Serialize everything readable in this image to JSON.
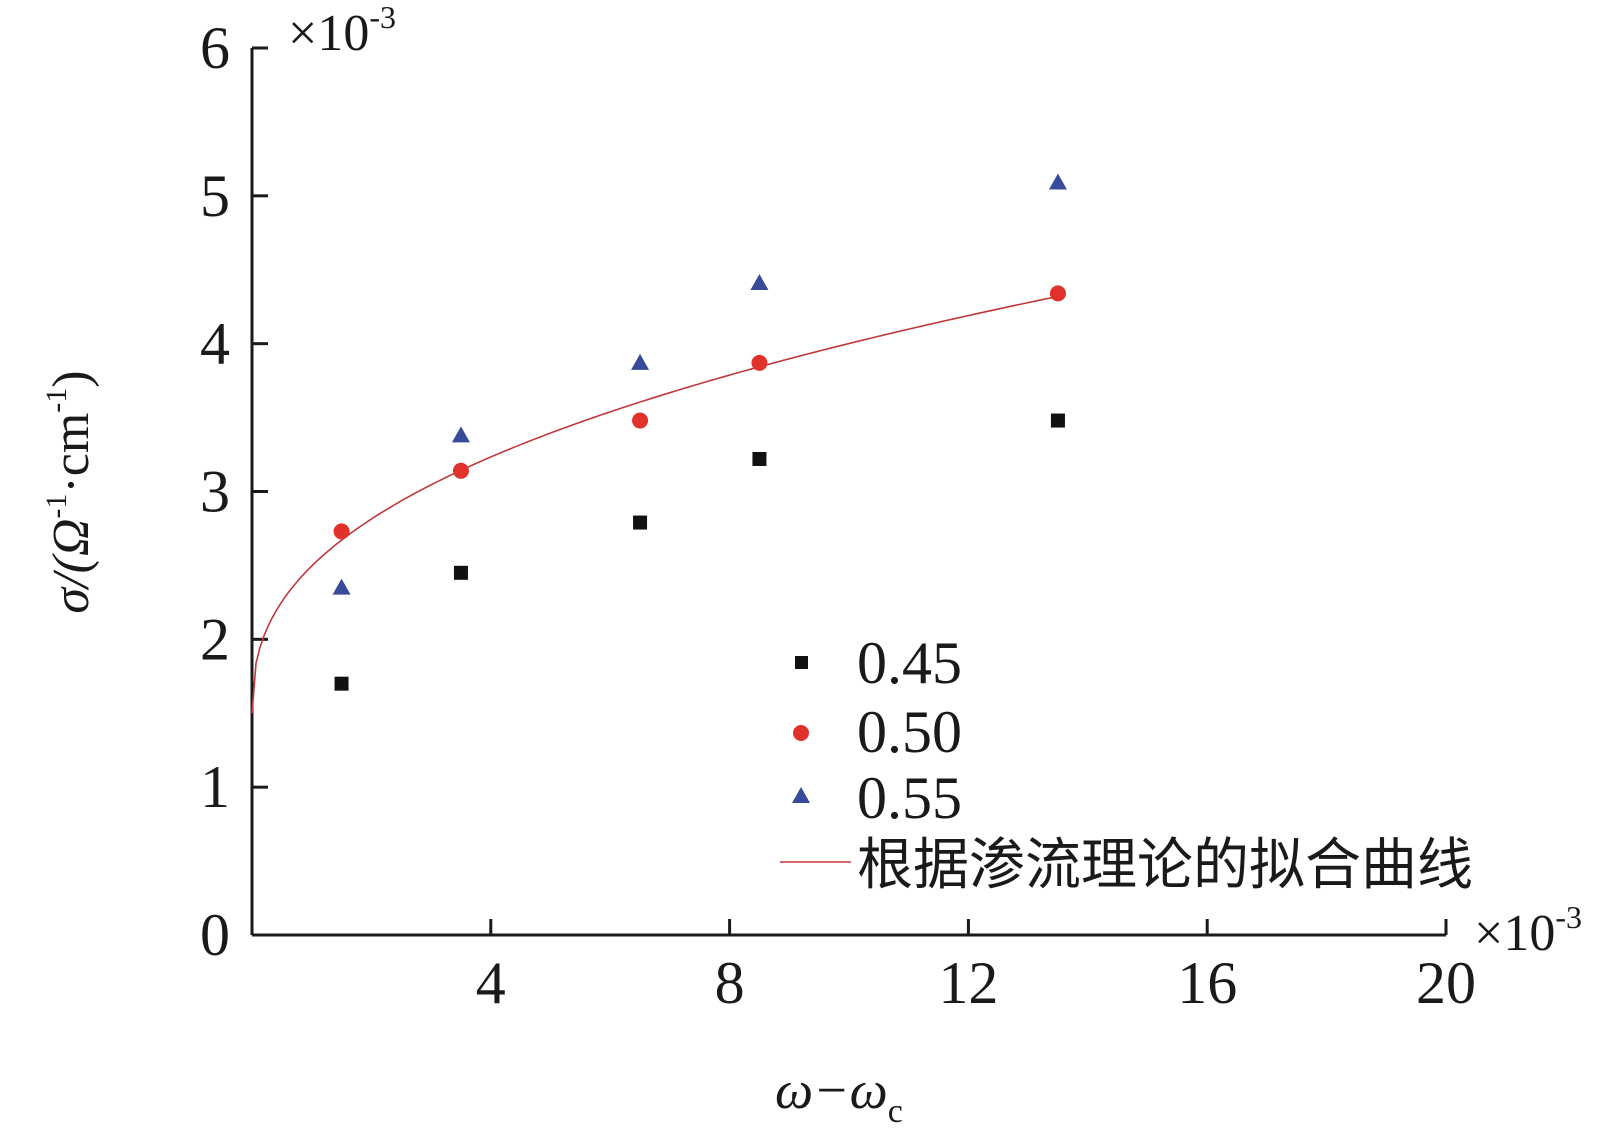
{
  "chart_data": {
    "type": "scatter",
    "xlabel_main": "ω−ω",
    "xlabel_sub": "c",
    "ylabel_prefix": "σ/(Ω",
    "ylabel_sup1": "-1",
    "ylabel_mid": "·cm",
    "ylabel_sup2": "-1",
    "ylabel_suffix": ")",
    "x_multiplier": "×10",
    "x_multiplier_exp": "-3",
    "y_multiplier": "×10",
    "y_multiplier_exp": "-3",
    "xlim": [
      0,
      20
    ],
    "ylim": [
      0,
      6
    ],
    "xticks": [
      4,
      8,
      12,
      16,
      20
    ],
    "yticks": [
      0,
      1,
      2,
      3,
      4,
      5,
      6
    ],
    "grid": false,
    "legend_position": "lower-right",
    "series": [
      {
        "name": "0.45",
        "marker": "square",
        "color": "#111111",
        "x": [
          1.5,
          3.5,
          6.5,
          8.5,
          13.5
        ],
        "y": [
          1.7,
          2.45,
          2.79,
          3.22,
          3.48
        ]
      },
      {
        "name": "0.50",
        "marker": "circle",
        "color": "#e0322b",
        "x": [
          1.5,
          3.5,
          6.5,
          8.5,
          13.5
        ],
        "y": [
          2.73,
          3.14,
          3.48,
          3.87,
          4.34
        ]
      },
      {
        "name": "0.55",
        "marker": "triangle",
        "color": "#3a4a9a",
        "x": [
          1.5,
          3.5,
          6.5,
          8.5,
          13.5
        ],
        "y": [
          2.35,
          3.38,
          3.87,
          4.41,
          5.09
        ]
      }
    ],
    "fit": {
      "name": "根据渗流理论的拟合曲线",
      "color": "#c0393b",
      "x_start": 0,
      "x_end": 13.5,
      "y_at_start": 1.5,
      "y_at_end": 4.32,
      "exponent": 0.4
    }
  }
}
